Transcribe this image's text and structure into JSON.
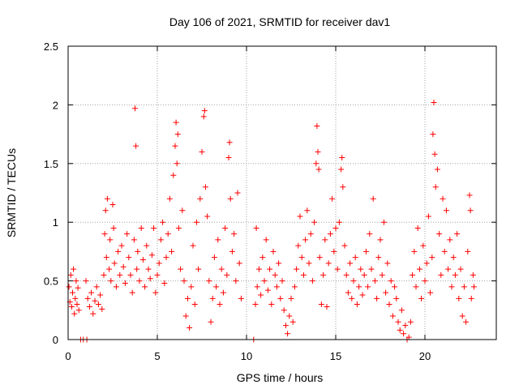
{
  "chart_data": {
    "type": "scatter",
    "title": "Day 106 of 2021, SRMTID for receiver dav1",
    "xlabel": "GPS time / hours",
    "ylabel": "SRMTID / TECUs",
    "xlim": [
      0,
      24
    ],
    "ylim": [
      0,
      2.5
    ],
    "xticks": [
      "0",
      "5",
      "10",
      "15",
      "20"
    ],
    "yticks": [
      "0",
      "0.5",
      "1",
      "1.5",
      "2",
      "2.5"
    ],
    "grid": true,
    "marker": "+",
    "color": "#ff0000",
    "series": [
      {
        "name": "dav1",
        "points": [
          [
            0.05,
            0.45
          ],
          [
            0.1,
            0.32
          ],
          [
            0.15,
            0.55
          ],
          [
            0.2,
            0.28
          ],
          [
            0.25,
            0.4
          ],
          [
            0.3,
            0.6
          ],
          [
            0.35,
            0.22
          ],
          [
            0.4,
            0.35
          ],
          [
            0.45,
            0.5
          ],
          [
            0.5,
            0.3
          ],
          [
            0.55,
            0.44
          ],
          [
            0.6,
            0.25
          ],
          [
            0.7,
            0.0
          ],
          [
            0.85,
            0.0
          ],
          [
            1.0,
            0.5
          ],
          [
            1.05,
            0.0
          ],
          [
            1.1,
            0.35
          ],
          [
            1.2,
            0.28
          ],
          [
            1.3,
            0.4
          ],
          [
            1.4,
            0.22
          ],
          [
            1.5,
            0.33
          ],
          [
            1.6,
            0.45
          ],
          [
            1.7,
            0.3
          ],
          [
            1.8,
            0.38
          ],
          [
            1.9,
            0.26
          ],
          [
            2.0,
            0.55
          ],
          [
            2.05,
            0.9
          ],
          [
            2.1,
            1.1
          ],
          [
            2.15,
            0.7
          ],
          [
            2.2,
            1.2
          ],
          [
            2.3,
            0.6
          ],
          [
            2.35,
            0.85
          ],
          [
            2.4,
            0.5
          ],
          [
            2.5,
            1.15
          ],
          [
            2.55,
            0.95
          ],
          [
            2.6,
            0.65
          ],
          [
            2.7,
            0.45
          ],
          [
            2.8,
            0.75
          ],
          [
            2.9,
            0.55
          ],
          [
            3.0,
            0.8
          ],
          [
            3.1,
            0.62
          ],
          [
            3.2,
            0.48
          ],
          [
            3.3,
            0.9
          ],
          [
            3.4,
            0.7
          ],
          [
            3.5,
            0.55
          ],
          [
            3.6,
            0.4
          ],
          [
            3.7,
            0.85
          ],
          [
            3.75,
            1.97
          ],
          [
            3.8,
            1.65
          ],
          [
            3.85,
            0.6
          ],
          [
            3.9,
            0.75
          ],
          [
            4.0,
            0.5
          ],
          [
            4.1,
            0.95
          ],
          [
            4.2,
            0.68
          ],
          [
            4.3,
            0.45
          ],
          [
            4.4,
            0.8
          ],
          [
            4.5,
            0.6
          ],
          [
            4.6,
            0.52
          ],
          [
            4.7,
            0.72
          ],
          [
            4.8,
            0.95
          ],
          [
            4.9,
            0.4
          ],
          [
            5.0,
            0.55
          ],
          [
            5.1,
            0.65
          ],
          [
            5.2,
            0.85
          ],
          [
            5.3,
            1.0
          ],
          [
            5.4,
            0.48
          ],
          [
            5.5,
            0.7
          ],
          [
            5.6,
            0.9
          ],
          [
            5.7,
            1.2
          ],
          [
            5.8,
            0.75
          ],
          [
            5.9,
            1.4
          ],
          [
            6.0,
            1.65
          ],
          [
            6.05,
            1.85
          ],
          [
            6.1,
            1.5
          ],
          [
            6.15,
            1.75
          ],
          [
            6.2,
            0.95
          ],
          [
            6.3,
            0.6
          ],
          [
            6.4,
            1.1
          ],
          [
            6.5,
            0.5
          ],
          [
            6.6,
            0.2
          ],
          [
            6.7,
            0.35
          ],
          [
            6.8,
            0.1
          ],
          [
            6.9,
            0.45
          ],
          [
            7.0,
            0.8
          ],
          [
            7.1,
            0.3
          ],
          [
            7.2,
            1.0
          ],
          [
            7.3,
            0.6
          ],
          [
            7.4,
            1.2
          ],
          [
            7.5,
            1.6
          ],
          [
            7.6,
            1.9
          ],
          [
            7.65,
            1.95
          ],
          [
            7.7,
            1.3
          ],
          [
            7.8,
            1.05
          ],
          [
            7.9,
            0.5
          ],
          [
            8.0,
            0.15
          ],
          [
            8.1,
            0.35
          ],
          [
            8.2,
            0.7
          ],
          [
            8.3,
            0.45
          ],
          [
            8.4,
            0.85
          ],
          [
            8.5,
            0.3
          ],
          [
            8.6,
            0.6
          ],
          [
            8.7,
            0.4
          ],
          [
            8.8,
            0.95
          ],
          [
            8.9,
            0.55
          ],
          [
            9.0,
            1.55
          ],
          [
            9.05,
            1.68
          ],
          [
            9.1,
            1.2
          ],
          [
            9.2,
            0.75
          ],
          [
            9.3,
            0.9
          ],
          [
            9.4,
            0.5
          ],
          [
            9.5,
            1.25
          ],
          [
            9.6,
            0.65
          ],
          [
            9.7,
            0.35
          ],
          [
            10.4,
            0.0
          ],
          [
            10.5,
            0.3
          ],
          [
            10.55,
            0.95
          ],
          [
            10.6,
            0.45
          ],
          [
            10.7,
            0.6
          ],
          [
            10.8,
            0.38
          ],
          [
            10.9,
            0.7
          ],
          [
            11.0,
            0.5
          ],
          [
            11.1,
            0.85
          ],
          [
            11.2,
            0.42
          ],
          [
            11.3,
            0.6
          ],
          [
            11.4,
            0.3
          ],
          [
            11.5,
            0.75
          ],
          [
            11.6,
            0.55
          ],
          [
            11.7,
            0.45
          ],
          [
            11.8,
            0.65
          ],
          [
            11.9,
            0.35
          ],
          [
            12.0,
            0.5
          ],
          [
            12.1,
            0.25
          ],
          [
            12.2,
            0.12
          ],
          [
            12.3,
            0.05
          ],
          [
            12.4,
            0.2
          ],
          [
            12.5,
            0.35
          ],
          [
            12.6,
            0.15
          ],
          [
            12.7,
            0.45
          ],
          [
            12.8,
            0.6
          ],
          [
            12.9,
            0.8
          ],
          [
            13.0,
            1.05
          ],
          [
            13.1,
            0.7
          ],
          [
            13.2,
            0.55
          ],
          [
            13.3,
            0.85
          ],
          [
            13.4,
            1.1
          ],
          [
            13.5,
            0.65
          ],
          [
            13.6,
            0.9
          ],
          [
            13.7,
            0.5
          ],
          [
            13.8,
            1.0
          ],
          [
            13.9,
            1.5
          ],
          [
            13.95,
            1.82
          ],
          [
            14.0,
            1.6
          ],
          [
            14.05,
            1.45
          ],
          [
            14.1,
            0.7
          ],
          [
            14.2,
            0.3
          ],
          [
            14.3,
            0.55
          ],
          [
            14.4,
            0.85
          ],
          [
            14.5,
            0.28
          ],
          [
            14.6,
            0.65
          ],
          [
            14.7,
            0.9
          ],
          [
            14.8,
            1.2
          ],
          [
            14.9,
            0.75
          ],
          [
            15.0,
            0.95
          ],
          [
            15.1,
            0.6
          ],
          [
            15.2,
            1.0
          ],
          [
            15.3,
            1.45
          ],
          [
            15.35,
            1.55
          ],
          [
            15.4,
            1.3
          ],
          [
            15.5,
            0.8
          ],
          [
            15.6,
            0.55
          ],
          [
            15.7,
            0.4
          ],
          [
            15.8,
            0.65
          ],
          [
            15.9,
            0.35
          ],
          [
            16.0,
            0.5
          ],
          [
            16.1,
            0.7
          ],
          [
            16.2,
            0.3
          ],
          [
            16.3,
            0.45
          ],
          [
            16.4,
            0.6
          ],
          [
            16.5,
            0.38
          ],
          [
            16.6,
            0.55
          ],
          [
            16.7,
            0.75
          ],
          [
            16.8,
            0.45
          ],
          [
            16.9,
            0.9
          ],
          [
            17.0,
            0.6
          ],
          [
            17.1,
            1.2
          ],
          [
            17.2,
            0.5
          ],
          [
            17.3,
            0.35
          ],
          [
            17.4,
            0.7
          ],
          [
            17.5,
            0.85
          ],
          [
            17.6,
            0.55
          ],
          [
            17.7,
            1.0
          ],
          [
            17.8,
            0.4
          ],
          [
            17.9,
            0.65
          ],
          [
            18.0,
            0.3
          ],
          [
            18.1,
            0.5
          ],
          [
            18.2,
            0.2
          ],
          [
            18.3,
            0.45
          ],
          [
            18.4,
            0.35
          ],
          [
            18.5,
            0.15
          ],
          [
            18.6,
            0.08
          ],
          [
            18.7,
            0.25
          ],
          [
            18.8,
            0.05
          ],
          [
            18.9,
            0.12
          ],
          [
            19.0,
            0.0
          ],
          [
            19.1,
            0.02
          ],
          [
            19.2,
            0.15
          ],
          [
            19.3,
            0.55
          ],
          [
            19.4,
            0.75
          ],
          [
            19.5,
            0.45
          ],
          [
            19.6,
            0.95
          ],
          [
            19.7,
            0.6
          ],
          [
            19.8,
            0.35
          ],
          [
            19.9,
            0.8
          ],
          [
            20.0,
            0.5
          ],
          [
            20.1,
            0.65
          ],
          [
            20.2,
            1.05
          ],
          [
            20.3,
            0.4
          ],
          [
            20.4,
            0.7
          ],
          [
            20.45,
            1.75
          ],
          [
            20.5,
            2.02
          ],
          [
            20.55,
            1.58
          ],
          [
            20.6,
            1.3
          ],
          [
            20.7,
            1.45
          ],
          [
            20.8,
            0.9
          ],
          [
            20.9,
            0.55
          ],
          [
            21.0,
            1.2
          ],
          [
            21.1,
            0.75
          ],
          [
            21.2,
            1.1
          ],
          [
            21.3,
            0.6
          ],
          [
            21.4,
            0.85
          ],
          [
            21.5,
            0.45
          ],
          [
            21.6,
            0.7
          ],
          [
            21.7,
            0.55
          ],
          [
            21.8,
            0.9
          ],
          [
            21.9,
            0.35
          ],
          [
            22.0,
            0.6
          ],
          [
            22.1,
            0.2
          ],
          [
            22.2,
            0.45
          ],
          [
            22.3,
            0.15
          ],
          [
            22.4,
            0.75
          ],
          [
            22.5,
            1.23
          ],
          [
            22.55,
            1.1
          ],
          [
            22.6,
            0.35
          ],
          [
            22.7,
            0.55
          ],
          [
            22.75,
            0.45
          ]
        ]
      }
    ]
  }
}
